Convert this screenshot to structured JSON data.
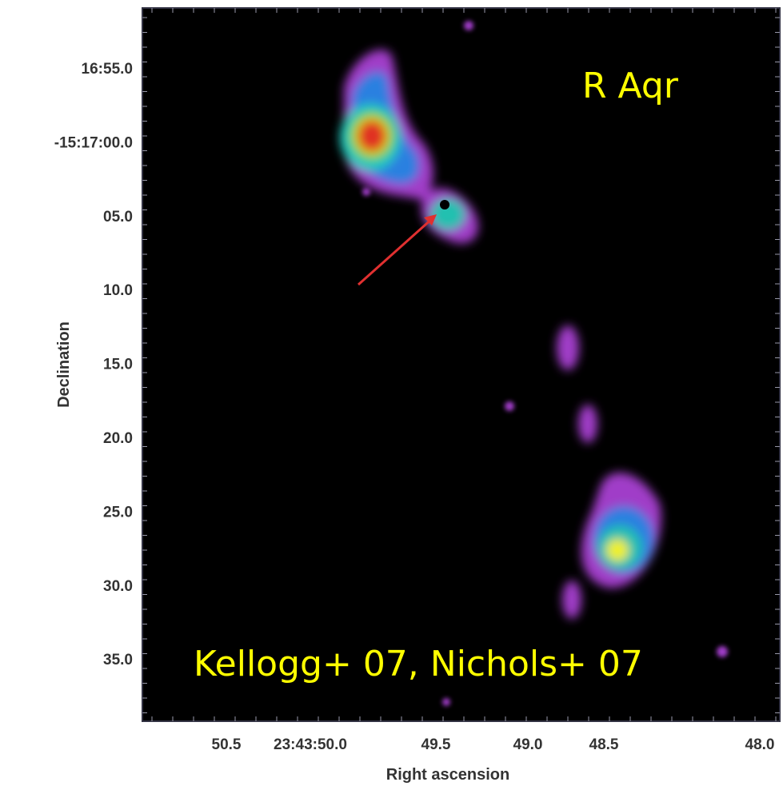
{
  "annotation": "R Aqr",
  "credit": "Kellogg+ 07, Nichols+ 07",
  "x_axis": {
    "label": "Right ascension",
    "ticks": [
      "50.5",
      "23:43:50.0",
      "49.5",
      "49.0",
      "48.5",
      "48.0"
    ]
  },
  "y_axis": {
    "label": "Declination",
    "ticks": [
      "16:55.0",
      "-15:17:00.0",
      "05.0",
      "10.0",
      "15.0",
      "20.0",
      "25.0",
      "30.0",
      "35.0"
    ]
  }
}
